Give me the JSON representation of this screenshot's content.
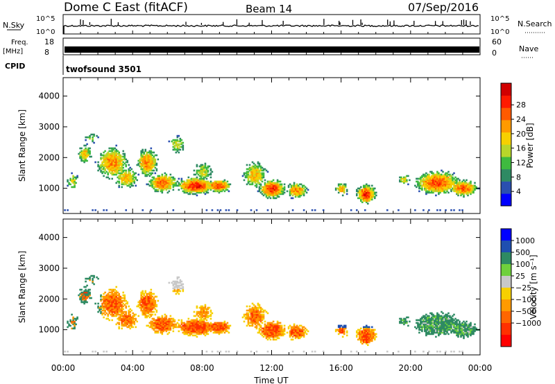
{
  "header": {
    "station": "Dome C East (fitACF)",
    "beam": "Beam 14",
    "date": "07/Sep/2016"
  },
  "colors": {
    "power_scale": [
      "#0000ff",
      "#2a4fb0",
      "#2e8a63",
      "#3fba3f",
      "#b9d62a",
      "#f7d000",
      "#ff9a00",
      "#ff5a00",
      "#ff1a00",
      "#d10000"
    ],
    "velocity_scale": [
      "#0000ff",
      "#1f4fb0",
      "#2e8a63",
      "#6fd03c",
      "#c8c8c8",
      "#f7d000",
      "#ff9a00",
      "#ff6600",
      "#ff3000",
      "#ff0000"
    ]
  },
  "chart_data": [
    {
      "type": "line",
      "name": "nsky-nsearch-panel",
      "ylabel_left": "N.Sky",
      "ylabel_right": "N.Search",
      "ticks_left": [
        "10^5",
        "10^0"
      ],
      "ticks_right": [
        "10^5",
        "10^0"
      ],
      "xlim": [
        "00:00",
        "24:00"
      ]
    },
    {
      "type": "line",
      "name": "freq-nave-panel",
      "ylabel_left_1": "Freq.",
      "ylabel_left_2": "[MHz]",
      "ylabel_right": "Nave",
      "ticks_left": [
        "18",
        "8"
      ],
      "ticks_right": [
        "60",
        "0"
      ],
      "cpid_label": "CPID",
      "cpid_value": "twofsound 3501"
    },
    {
      "type": "heatmap",
      "name": "power-panel",
      "ylabel": "Slant Range [km]",
      "yticks": [
        1000,
        2000,
        3000,
        4000
      ],
      "ylim": [
        180,
        4600
      ],
      "colorbar_label": "Power [dB]",
      "colorbar_ticks": [
        "4",
        "8",
        "12",
        "16",
        "20",
        "24",
        "28"
      ]
    },
    {
      "type": "heatmap",
      "name": "velocity-panel",
      "ylabel": "Slant Range [km]",
      "yticks": [
        1000,
        2000,
        3000,
        4000
      ],
      "ylim": [
        180,
        4600
      ],
      "colorbar_label": "Velocity [m s⁻¹]",
      "colorbar_ticks": [
        "1000",
        "500",
        "100",
        "25",
        "−25",
        "−100",
        "−500",
        "−1000"
      ]
    }
  ],
  "xaxis": {
    "label": "Time UT",
    "ticks": [
      "00:00",
      "04:00",
      "08:00",
      "12:00",
      "16:00",
      "20:00",
      "00:00"
    ]
  }
}
